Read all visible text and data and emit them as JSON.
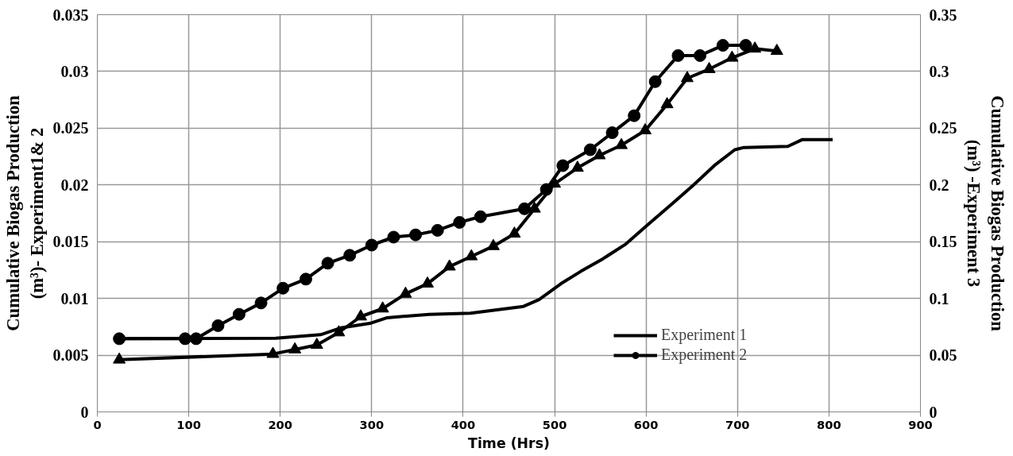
{
  "chart_data": {
    "type": "line",
    "xlabel": "Time (Hrs)",
    "ylabel": "Cumulative Biogas Production (m³)- Experiment1& 2",
    "y2label": "Cumulative Biogas Production (m³) -Experiment 3",
    "xlim": [
      0,
      900
    ],
    "xticks": [
      0,
      100,
      200,
      300,
      400,
      500,
      600,
      700,
      800,
      900
    ],
    "ylim": [
      0,
      0.035
    ],
    "yticks": [
      0,
      0.005,
      0.01,
      0.015,
      0.02,
      0.025,
      0.03,
      0.035
    ],
    "y2lim": [
      0,
      0.35
    ],
    "y2ticks": [
      0,
      0.05,
      0.1,
      0.15,
      0.2,
      0.25,
      0.3,
      0.35
    ],
    "grid": true,
    "legend": "right",
    "series": [
      {
        "name": "Experiment 1",
        "color": "#000000",
        "marker": "none",
        "x": [
          24,
          195,
          244,
          266,
          298,
          317,
          363,
          408,
          466,
          483,
          507,
          529,
          553,
          578,
          602,
          628,
          652,
          676,
          697,
          707,
          755,
          771,
          804
        ],
        "values": [
          0.00645,
          0.0065,
          0.0068,
          0.0074,
          0.0078,
          0.0083,
          0.0086,
          0.0087,
          0.0093,
          0.0099,
          0.0113,
          0.0124,
          0.0135,
          0.0148,
          0.0165,
          0.0183,
          0.02,
          0.0218,
          0.0231,
          0.0233,
          0.0234,
          0.024,
          0.024
        ]
      },
      {
        "name": "Experiment 2",
        "color": "#000000",
        "marker": "circle",
        "x": [
          24,
          96,
          108,
          132,
          155,
          179,
          203,
          228,
          252,
          276,
          300,
          324,
          348,
          372,
          396,
          419,
          467,
          491,
          509,
          539,
          563,
          587,
          610,
          635,
          659,
          684,
          709
        ],
        "values": [
          0.00645,
          0.00645,
          0.00645,
          0.0076,
          0.0086,
          0.0096,
          0.0109,
          0.0117,
          0.0131,
          0.0138,
          0.0147,
          0.0154,
          0.0156,
          0.016,
          0.0167,
          0.0172,
          0.0179,
          0.0196,
          0.0217,
          0.0231,
          0.0246,
          0.0261,
          0.0291,
          0.0314,
          0.0314,
          0.0323,
          0.0323
        ]
      },
      {
        "color": "#000000",
        "marker": "triangle",
        "axis": "y2",
        "x": [
          24,
          192,
          216,
          240,
          264,
          288,
          312,
          337,
          361,
          385,
          409,
          433,
          456,
          478,
          500,
          525,
          549,
          573,
          599,
          623,
          645,
          669,
          694,
          719,
          743
        ],
        "values": [
          0.046,
          0.051,
          0.055,
          0.059,
          0.07,
          0.084,
          0.091,
          0.104,
          0.113,
          0.128,
          0.137,
          0.146,
          0.157,
          0.179,
          0.201,
          0.215,
          0.226,
          0.235,
          0.248,
          0.271,
          0.294,
          0.302,
          0.312,
          0.32,
          0.318
        ]
      }
    ]
  }
}
